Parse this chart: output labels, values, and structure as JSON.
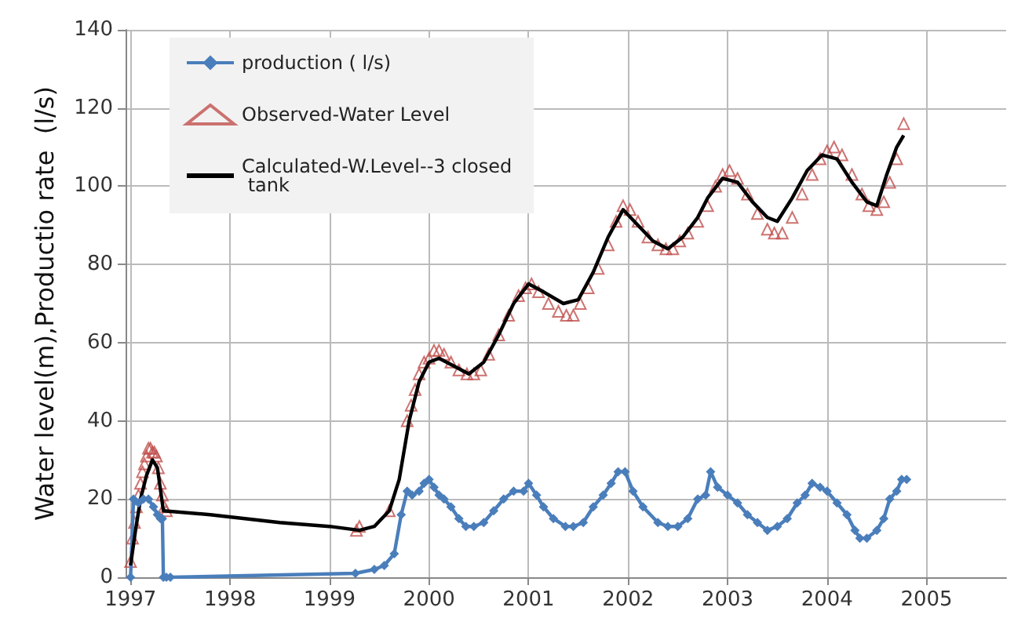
{
  "chart_data": {
    "type": "line",
    "ylabel": "Water level(m),Productio rate  (l/s)",
    "xlim": [
      1996.95,
      2005.8
    ],
    "xticks": [
      1997,
      1998,
      1999,
      2000,
      2001,
      2002,
      2003,
      2004,
      2005
    ],
    "ylim": [
      0,
      140
    ],
    "yticks": [
      0,
      20,
      40,
      60,
      80,
      100,
      120,
      140
    ],
    "grid": true,
    "legend": "top left",
    "series": [
      {
        "name": "production ( l/s)",
        "marker": "diamond",
        "color": "#4a7ebb",
        "x": [
          1997.0,
          1997.03,
          1997.08,
          1997.13,
          1997.18,
          1997.23,
          1997.27,
          1997.3,
          1997.32,
          1997.33,
          1997.36,
          1997.4,
          1999.26,
          1999.45,
          1999.55,
          1999.65,
          1999.72,
          1999.78,
          1999.83,
          1999.9,
          1999.95,
          2000.0,
          2000.05,
          2000.1,
          2000.15,
          2000.22,
          2000.3,
          2000.37,
          2000.45,
          2000.55,
          2000.65,
          2000.75,
          2000.85,
          2000.95,
          2001.0,
          2001.08,
          2001.15,
          2001.25,
          2001.37,
          2001.45,
          2001.55,
          2001.65,
          2001.75,
          2001.83,
          2001.9,
          2001.97,
          2002.05,
          2002.15,
          2002.3,
          2002.4,
          2002.5,
          2002.6,
          2002.7,
          2002.78,
          2002.83,
          2002.9,
          2003.0,
          2003.1,
          2003.2,
          2003.3,
          2003.4,
          2003.5,
          2003.6,
          2003.7,
          2003.78,
          2003.85,
          2003.93,
          2004.0,
          2004.1,
          2004.2,
          2004.28,
          2004.33,
          2004.4,
          2004.5,
          2004.57,
          2004.63,
          2004.7,
          2004.75,
          2004.8
        ],
        "values": [
          0,
          20,
          19,
          20,
          20,
          18,
          16,
          15,
          15,
          0,
          0,
          0,
          1,
          2,
          3,
          6,
          16,
          22,
          21,
          22,
          24,
          25,
          23,
          21,
          20,
          18,
          15,
          13,
          13,
          14,
          17,
          20,
          22,
          22,
          24,
          21,
          18,
          15,
          13,
          13,
          14,
          18,
          21,
          24,
          27,
          27,
          22,
          18,
          14,
          13,
          13,
          15,
          20,
          21,
          27,
          23,
          21,
          19,
          16,
          14,
          12,
          13,
          15,
          19,
          21,
          24,
          23,
          22,
          19,
          16,
          12,
          10,
          10,
          12,
          15,
          20,
          22,
          25,
          25
        ]
      },
      {
        "name": "Observed-Water Level",
        "type": "scatter",
        "marker": "triangle",
        "color": "#c0504d",
        "x": [
          1997.0,
          1997.02,
          1997.04,
          1997.06,
          1997.08,
          1997.1,
          1997.12,
          1997.14,
          1997.16,
          1997.18,
          1997.2,
          1997.22,
          1997.24,
          1997.26,
          1997.28,
          1997.3,
          1997.32,
          1997.34,
          1997.36,
          1999.27,
          1999.3,
          1999.6,
          1999.78,
          1999.82,
          1999.86,
          1999.9,
          1999.95,
          2000.0,
          2000.05,
          2000.1,
          2000.15,
          2000.22,
          2000.3,
          2000.38,
          2000.45,
          2000.52,
          2000.6,
          2000.7,
          2000.8,
          2000.9,
          2000.97,
          2001.03,
          2001.1,
          2001.2,
          2001.3,
          2001.38,
          2001.45,
          2001.52,
          2001.6,
          2001.7,
          2001.8,
          2001.88,
          2001.95,
          2002.02,
          2002.1,
          2002.2,
          2002.3,
          2002.38,
          2002.45,
          2002.52,
          2002.6,
          2002.7,
          2002.8,
          2002.88,
          2002.95,
          2003.02,
          2003.1,
          2003.2,
          2003.3,
          2003.4,
          2003.47,
          2003.55,
          2003.65,
          2003.75,
          2003.85,
          2003.93,
          2004.0,
          2004.07,
          2004.15,
          2004.25,
          2004.35,
          2004.42,
          2004.5,
          2004.57,
          2004.63,
          2004.7,
          2004.77
        ],
        "values": [
          4,
          10,
          14,
          18,
          21,
          24,
          27,
          29,
          31,
          33,
          33,
          32,
          32,
          31,
          28,
          24,
          21,
          18,
          17,
          12,
          13,
          17,
          40,
          44,
          48,
          52,
          55,
          56,
          58,
          58,
          57,
          55,
          53,
          52,
          52,
          53,
          57,
          62,
          67,
          72,
          74,
          75,
          73,
          70,
          68,
          67,
          67,
          70,
          74,
          79,
          85,
          91,
          95,
          94,
          91,
          87,
          85,
          84,
          84,
          86,
          88,
          91,
          95,
          100,
          103,
          104,
          102,
          98,
          93,
          89,
          88,
          88,
          92,
          98,
          103,
          107,
          109,
          110,
          108,
          103,
          98,
          95,
          94,
          96,
          101,
          107,
          116
        ]
      },
      {
        "name": "Calculated-W.Level--3 closed tank",
        "marker": "none",
        "color": "#000000",
        "x": [
          1997.0,
          1997.05,
          1997.1,
          1997.16,
          1997.22,
          1997.27,
          1997.33,
          1997.8,
          1998.5,
          1999.0,
          1999.3,
          1999.45,
          1999.6,
          1999.7,
          1999.8,
          1999.9,
          2000.0,
          2000.1,
          2000.25,
          2000.4,
          2000.55,
          2000.7,
          2000.85,
          2001.0,
          2001.15,
          2001.35,
          2001.5,
          2001.65,
          2001.8,
          2001.95,
          2002.1,
          2002.25,
          2002.4,
          2002.55,
          2002.7,
          2002.8,
          2002.95,
          2003.1,
          2003.25,
          2003.4,
          2003.5,
          2003.65,
          2003.8,
          2003.95,
          2004.1,
          2004.25,
          2004.4,
          2004.5,
          2004.6,
          2004.7,
          2004.77
        ],
        "values": [
          3,
          12,
          20,
          26,
          30,
          28,
          17,
          16,
          14,
          13,
          12,
          13,
          17,
          25,
          40,
          50,
          55,
          56,
          54,
          52,
          55,
          62,
          70,
          75,
          73,
          70,
          71,
          78,
          87,
          94,
          90,
          86,
          84,
          87,
          92,
          97,
          102,
          101,
          96,
          92,
          91,
          97,
          104,
          108,
          107,
          101,
          96,
          95,
          103,
          110,
          113
        ]
      }
    ]
  }
}
